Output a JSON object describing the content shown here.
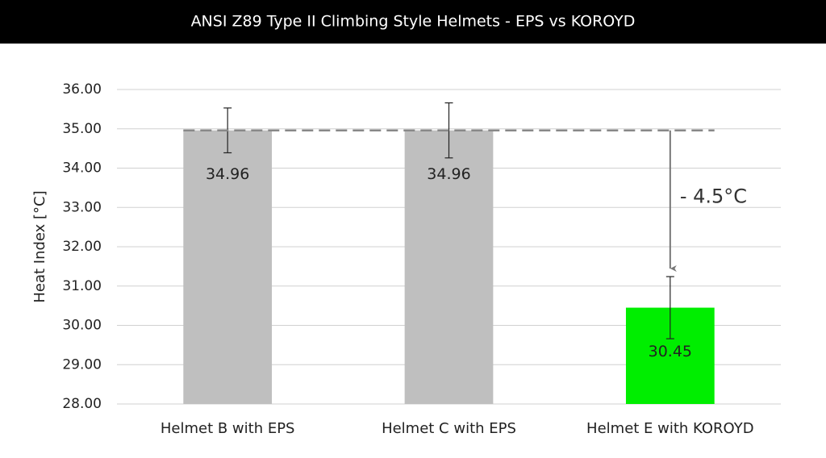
{
  "chart_data": {
    "type": "bar",
    "title": "ANSI Z89 Type II Climbing Style Helmets - EPS vs KOROYD",
    "y_label": "Heat Index [°C]",
    "categories": [
      "Helmet B with EPS",
      "Helmet C with EPS",
      "Helmet E with KOROYD"
    ],
    "values": [
      34.96,
      34.96,
      30.45
    ],
    "errors": [
      0.57,
      0.7,
      0.79
    ],
    "colors": [
      "#bfbfbf",
      "#bfbfbf",
      "#00ee00"
    ],
    "ylim": [
      28,
      36
    ],
    "yticks": [
      {
        "value": 28,
        "label": "28.00"
      },
      {
        "value": 29,
        "label": "29.00"
      },
      {
        "value": 30,
        "label": "30.00"
      },
      {
        "value": 31,
        "label": "31.00"
      },
      {
        "value": 32,
        "label": "32.00"
      },
      {
        "value": 33,
        "label": "33.00"
      },
      {
        "value": 34,
        "label": "34.00"
      },
      {
        "value": 35,
        "label": "35.00"
      },
      {
        "value": 36,
        "label": "36.00"
      }
    ],
    "grid": true,
    "annotation": "- 4.5°C"
  }
}
